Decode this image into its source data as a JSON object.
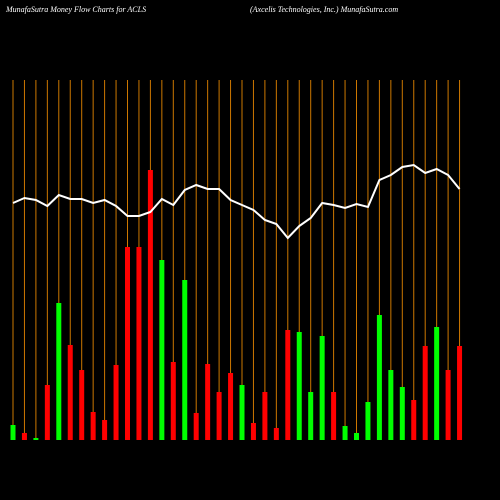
{
  "chart_data": {
    "type": "bar",
    "title": "MunafaSutra  Money Flow  Charts for ACLS",
    "subtitle": "(Axcelis Technologies,  Inc.) MunafaSutra.com",
    "values": [
      15,
      7,
      2,
      55,
      137,
      95,
      70,
      28,
      20,
      75,
      193,
      193,
      270,
      180,
      78,
      160,
      27,
      76,
      48,
      67,
      55,
      17,
      48,
      12,
      110,
      108,
      48,
      104,
      48,
      14,
      7,
      38,
      125,
      70,
      53,
      40,
      94,
      113,
      70,
      94
    ],
    "colors": [
      "#00ff00",
      "#ff0000",
      "#00ff00",
      "#ff0000",
      "#00ff00",
      "#ff0000",
      "#ff0000",
      "#ff0000",
      "#ff0000",
      "#ff0000",
      "#ff0000",
      "#ff0000",
      "#ff0000",
      "#00ff00",
      "#ff0000",
      "#00ff00",
      "#ff0000",
      "#ff0000",
      "#ff0000",
      "#ff0000",
      "#00ff00",
      "#ff0000",
      "#ff0000",
      "#ff0000",
      "#ff0000",
      "#00ff00",
      "#00ff00",
      "#00ff00",
      "#ff0000",
      "#00ff00",
      "#00ff00",
      "#00ff00",
      "#00ff00",
      "#00ff00",
      "#00ff00",
      "#ff0000",
      "#ff0000",
      "#00ff00",
      "#ff0000",
      "#ff0000"
    ],
    "line_values": [
      237,
      242,
      240,
      234,
      245,
      241,
      241,
      237,
      240,
      234,
      224,
      224,
      228,
      241,
      235,
      250,
      255,
      251,
      251,
      240,
      235,
      230,
      220,
      216,
      202,
      214,
      222,
      237,
      235,
      232,
      236,
      233,
      260,
      265,
      273,
      275,
      267,
      271,
      265,
      251
    ],
    "line_color": "#ffffff",
    "grid_color": "#cc7700",
    "ylim": [
      0,
      280
    ]
  }
}
